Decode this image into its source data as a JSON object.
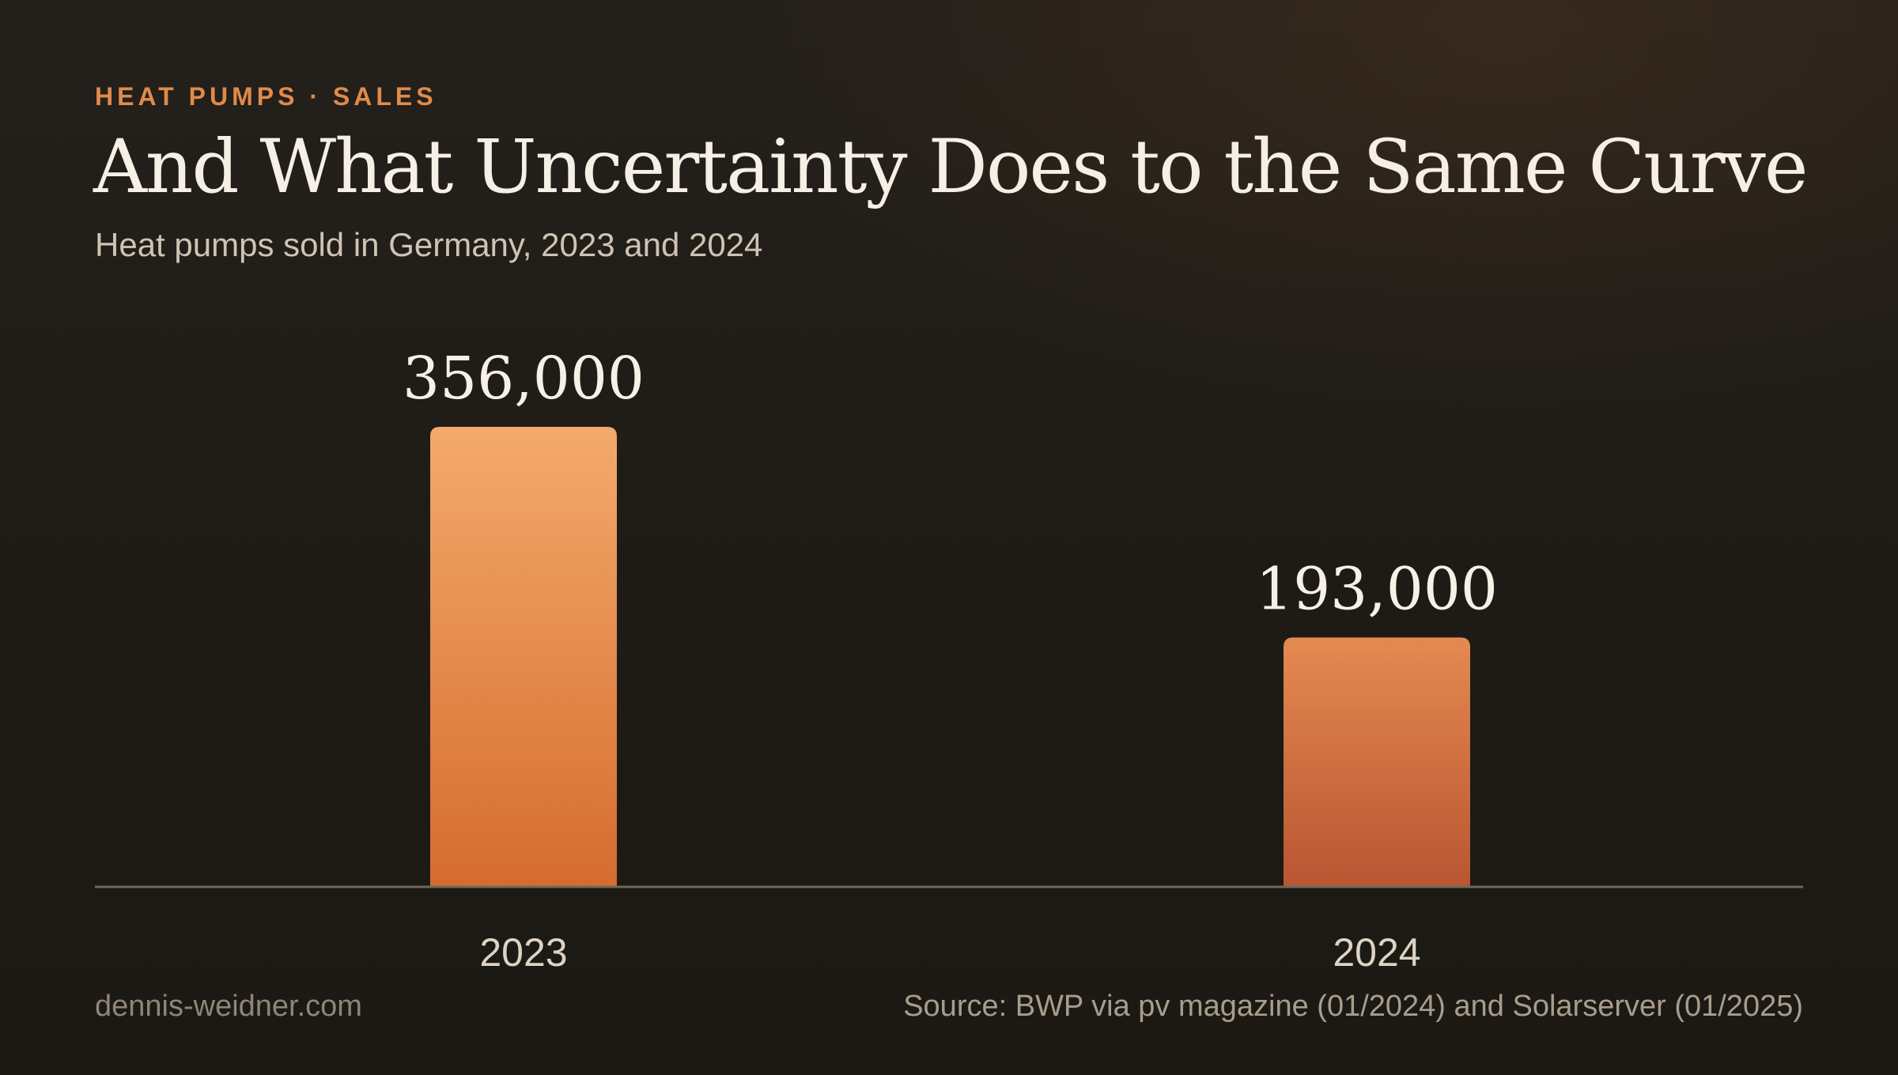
{
  "header": {
    "eyebrow": "HEAT PUMPS · SALES",
    "title": "And What Uncertainty Does to the Same Curve",
    "subtitle": "Heat pumps sold in Germany, 2023 and 2024"
  },
  "footer": {
    "site": "dennis-weidner.com",
    "source": "Source: BWP via pv magazine (01/2024) and Solarserver (01/2025)"
  },
  "colors": {
    "accent": "#e08a4a",
    "bar_2023_top": "#f3aa6c",
    "bar_2023_bottom": "#d56c2e",
    "bar_2024_top": "#e48a51",
    "bar_2024_bottom": "#b95532",
    "baseline": "#6f675b"
  },
  "chart_data": {
    "type": "bar",
    "categories": [
      "2023",
      "2024"
    ],
    "values": [
      356000,
      193000
    ],
    "data_labels": [
      "356,000",
      "193,000"
    ],
    "title": "And What Uncertainty Does to the Same Curve",
    "xlabel": "",
    "ylabel": "",
    "ylim": [
      0,
      356000
    ],
    "grid": false,
    "legend": "none"
  }
}
